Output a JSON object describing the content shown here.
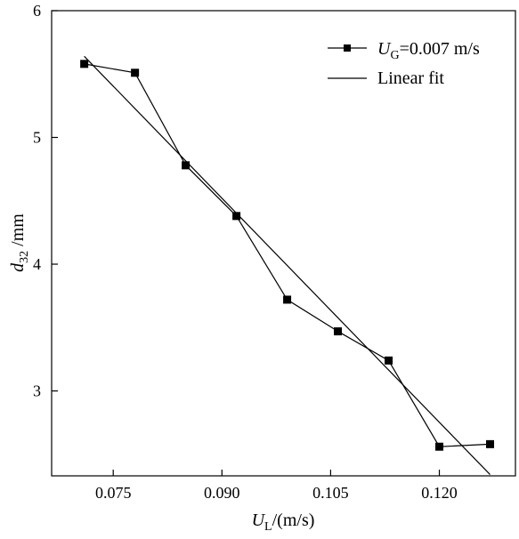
{
  "chart_data": {
    "type": "line",
    "xlabel": {
      "var": "U",
      "sub": "L",
      "unit": "/(m/s)"
    },
    "ylabel": {
      "var": "d",
      "sub": "32",
      "unit": " /mm"
    },
    "xlim": [
      0.0665,
      0.1305
    ],
    "ylim": [
      2.33,
      6.0
    ],
    "xticks": [
      0.075,
      0.09,
      0.105,
      0.12
    ],
    "xtick_labels": [
      "0.075",
      "0.090",
      "0.105",
      "0.120"
    ],
    "yticks": [
      3,
      4,
      5,
      6
    ],
    "ytick_labels": [
      "3",
      "4",
      "5",
      "6"
    ],
    "grid": false,
    "legend_position": "top-right",
    "series": [
      {
        "name": "U_G=0.007 m/s",
        "legend": {
          "var": "U",
          "sub": "G",
          "rest": "=0.007 m/s"
        },
        "marker": "square",
        "color": "#000000",
        "x": [
          0.071,
          0.078,
          0.085,
          0.092,
          0.099,
          0.106,
          0.113,
          0.12,
          0.127
        ],
        "y": [
          5.58,
          5.51,
          4.78,
          4.38,
          3.72,
          3.47,
          3.24,
          2.56,
          2.58
        ]
      },
      {
        "name": "Linear fit",
        "legend": {
          "text": "Linear fit"
        },
        "marker": "none",
        "color": "#000000",
        "x": [
          0.071,
          0.127
        ],
        "y": [
          5.64,
          2.34
        ]
      }
    ]
  }
}
